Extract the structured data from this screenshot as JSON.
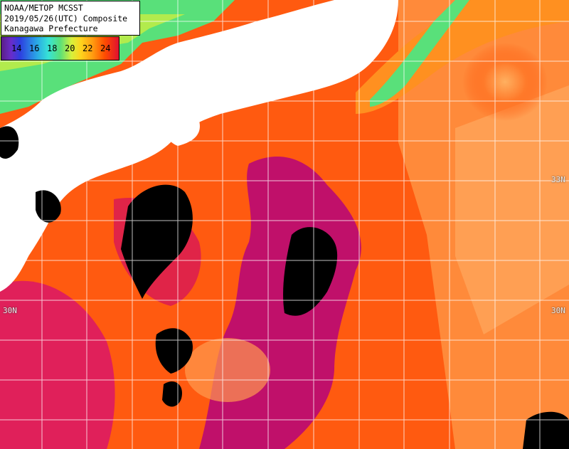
{
  "title": {
    "line1": "NOAA/METOP MCSST",
    "line2": "2019/05/26(UTC) Composite",
    "line3": "Kanagawa Prefecture"
  },
  "legend": {
    "ticks": [
      "14",
      "16",
      "18",
      "20",
      "22",
      "24"
    ]
  },
  "grid": {
    "lat_labels": [
      {
        "text": "30N",
        "side": "left",
        "row": "lower"
      },
      {
        "text": "30N",
        "side": "right",
        "row": "lower"
      },
      {
        "text": "33N",
        "side": "right",
        "row": "upper"
      }
    ]
  },
  "colors": {
    "land": "#ffffff",
    "cloud": "#000000",
    "warm_sea": "#ff5a10",
    "kuroshio": "#c0106a",
    "cool_sea": "#ff9a40",
    "coastal_cool": "#59e07a"
  }
}
